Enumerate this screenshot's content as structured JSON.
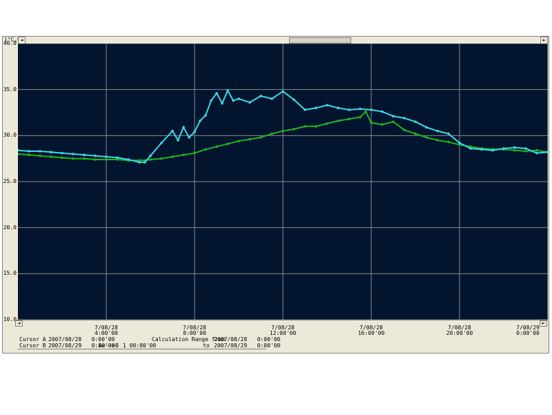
{
  "unit_label": "[°C,%]",
  "cursor": {
    "a_label": "Cursor A",
    "a_value": "2007/08/28   0:00'00",
    "b_label": "Cursor B",
    "b_value": "2007/08/29   0:00'00",
    "ab_label": "A<-->B",
    "ab_value": "1 00:00'00",
    "calc_label": "Calculation Range from",
    "calc_from": "2007/08/28   0:00'00",
    "calc_to_label": "to",
    "calc_to": "2007/08/29   0:00'00"
  },
  "colors": {
    "background": "#03152e",
    "grid": "#8a8a8a",
    "series1": "#3fd9e8",
    "series2": "#21b321"
  },
  "chart_data": {
    "type": "line",
    "title": "",
    "xlabel": "",
    "ylabel": "",
    "xlim": [
      0,
      24
    ],
    "ylim": [
      10.0,
      40.0
    ],
    "yticks": [
      "10.0",
      "15.0",
      "20.0",
      "25.0",
      "30.0",
      "35.0",
      "40.0"
    ],
    "xticks": [
      {
        "x": 4,
        "date": "7/08/28",
        "time": "4:00'00"
      },
      {
        "x": 8,
        "date": "7/08/28",
        "time": "8:00'00"
      },
      {
        "x": 12,
        "date": "7/08/28",
        "time": "12:00'00"
      },
      {
        "x": 16,
        "date": "7/08/28",
        "time": "16:00'00"
      },
      {
        "x": 20,
        "date": "7/08/28",
        "time": "20:00'00"
      },
      {
        "x": 24,
        "date": "7/08/29",
        "time": "0:00'00"
      }
    ],
    "grid": true,
    "series": [
      {
        "x": [
          0,
          0.5,
          1,
          1.5,
          2,
          2.5,
          3,
          3.5,
          4,
          4.5,
          5,
          5.5,
          5.75,
          6,
          6.5,
          7,
          7.25,
          7.5,
          7.75,
          8,
          8.25,
          8.5,
          8.75,
          9,
          9.25,
          9.5,
          9.75,
          10,
          10.5,
          11,
          11.5,
          12,
          12.5,
          13,
          13.5,
          14,
          14.5,
          15,
          15.5,
          16,
          16.5,
          17,
          17.5,
          18,
          18.5,
          19,
          19.5,
          20,
          20.5,
          21,
          21.5,
          22,
          22.5,
          23,
          23.5,
          24
        ],
        "y": [
          28.4,
          28.3,
          28.3,
          28.2,
          28.1,
          28.0,
          27.9,
          27.8,
          27.7,
          27.6,
          27.4,
          27.1,
          27.1,
          27.8,
          29.2,
          30.5,
          29.5,
          30.9,
          29.8,
          30.4,
          31.6,
          32.2,
          33.8,
          34.6,
          33.5,
          34.9,
          33.8,
          34.0,
          33.6,
          34.3,
          34.0,
          34.8,
          33.9,
          32.8,
          33.0,
          33.3,
          33.0,
          32.8,
          32.9,
          32.8,
          32.6,
          32.1,
          31.9,
          31.5,
          30.9,
          30.5,
          30.2,
          29.2,
          28.6,
          28.5,
          28.4,
          28.6,
          28.7,
          28.6,
          28.1,
          28.2
        ]
      },
      {
        "x": [
          0,
          0.5,
          1,
          1.5,
          2,
          2.5,
          3,
          3.5,
          4,
          4.5,
          5,
          5.5,
          5.75,
          6,
          6.5,
          7,
          7.5,
          8,
          8.5,
          9,
          9.5,
          10,
          10.5,
          11,
          11.5,
          12,
          12.5,
          13,
          13.5,
          14,
          14.5,
          15,
          15.5,
          15.75,
          16,
          16.5,
          17,
          17.5,
          18,
          18.5,
          19,
          19.5,
          20,
          20.5,
          21,
          21.5,
          22,
          22.5,
          23,
          23.5,
          24
        ],
        "y": [
          28.0,
          27.9,
          27.8,
          27.7,
          27.6,
          27.5,
          27.5,
          27.4,
          27.4,
          27.4,
          27.3,
          27.3,
          27.3,
          27.4,
          27.5,
          27.7,
          27.9,
          28.1,
          28.5,
          28.8,
          29.1,
          29.4,
          29.6,
          29.8,
          30.2,
          30.5,
          30.7,
          31.0,
          31.0,
          31.3,
          31.6,
          31.8,
          32.0,
          32.6,
          31.4,
          31.2,
          31.5,
          30.6,
          30.2,
          29.8,
          29.5,
          29.3,
          29.0,
          28.8,
          28.6,
          28.5,
          28.5,
          28.4,
          28.3,
          28.4,
          28.2
        ]
      }
    ]
  }
}
